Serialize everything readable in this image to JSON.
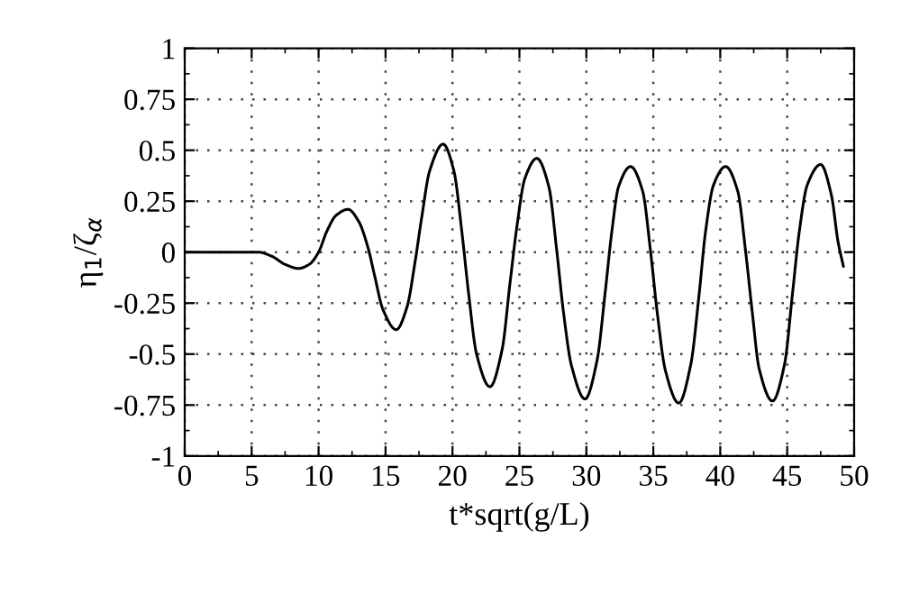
{
  "chart_data": {
    "type": "line",
    "xlabel": "t*sqrt(g/L)",
    "ylabel": "η$_{1}$/ζ$_{α}$",
    "xlim": [
      0,
      50
    ],
    "ylim": [
      -1,
      1
    ],
    "xticks": [
      0,
      5,
      10,
      15,
      20,
      25,
      30,
      35,
      40,
      45,
      50
    ],
    "yticks": [
      -1,
      -0.75,
      -0.5,
      -0.25,
      0,
      0.25,
      0.5,
      0.75,
      1
    ],
    "grid": true,
    "legend": false,
    "marker": "none",
    "line_style": "solid",
    "series": [
      {
        "color": "#000000",
        "x": [
          0,
          2,
          4,
          5.5,
          6.5,
          7.5,
          8.5,
          9.3,
          10,
          10.6,
          11.3,
          12.2,
          13,
          13.7,
          14.2,
          14.8,
          15.8,
          16.6,
          17.2,
          17.7,
          18.3,
          19.3,
          20.1,
          20.7,
          21.2,
          21.8,
          22.8,
          23.7,
          24.3,
          24.8,
          25.4,
          26.3,
          27.2,
          27.8,
          28.3,
          28.9,
          29.9,
          30.8,
          31.4,
          31.9,
          32.4,
          33.3,
          34.2,
          34.8,
          35.3,
          35.9,
          36.9,
          37.8,
          38.4,
          38.9,
          39.5,
          40.4,
          41.3,
          41.9,
          42.4,
          42.9,
          43.9,
          44.8,
          45.4,
          45.9,
          46.5,
          47.5,
          48.3,
          48.8,
          49.2
        ],
        "values": [
          0,
          0,
          0,
          0,
          -0.02,
          -0.06,
          -0.08,
          -0.06,
          0,
          0.1,
          0.18,
          0.21,
          0.15,
          0.02,
          -0.12,
          -0.28,
          -0.38,
          -0.27,
          -0.05,
          0.17,
          0.4,
          0.53,
          0.4,
          0.1,
          -0.2,
          -0.5,
          -0.66,
          -0.48,
          -0.15,
          0.12,
          0.36,
          0.46,
          0.32,
          0,
          -0.3,
          -0.56,
          -0.72,
          -0.53,
          -0.2,
          0.1,
          0.32,
          0.42,
          0.3,
          0,
          -0.3,
          -0.58,
          -0.74,
          -0.55,
          -0.22,
          0.1,
          0.33,
          0.42,
          0.3,
          0,
          -0.3,
          -0.57,
          -0.73,
          -0.55,
          -0.2,
          0.1,
          0.33,
          0.43,
          0.28,
          0.05,
          -0.07
        ]
      }
    ]
  }
}
